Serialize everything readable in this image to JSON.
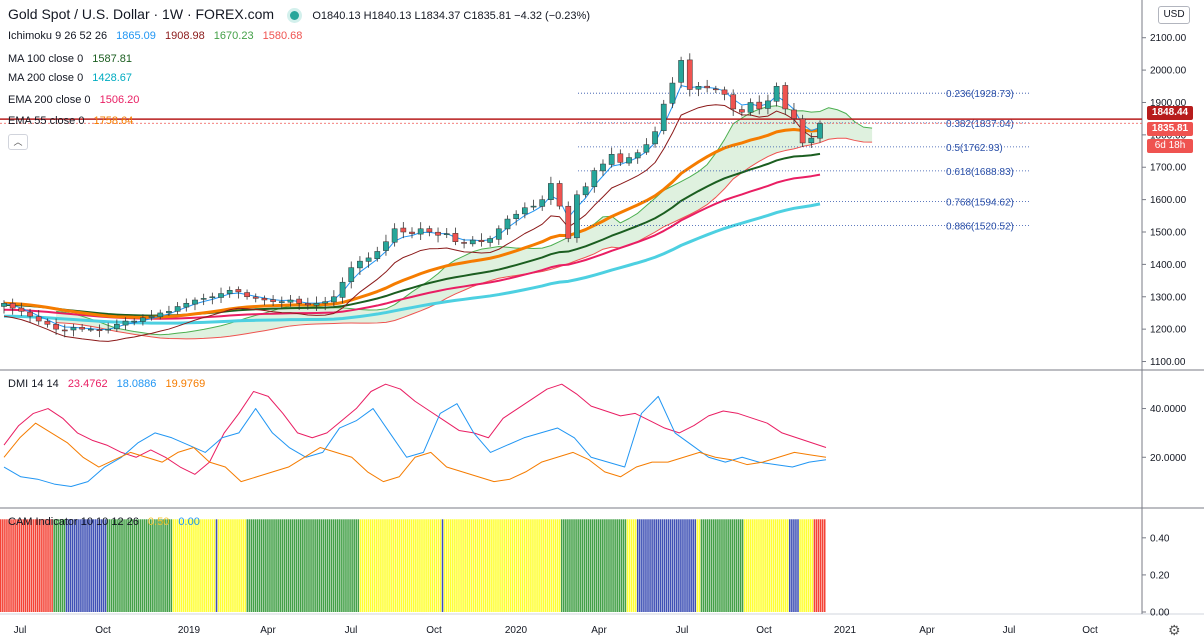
{
  "header": {
    "symbol": "Gold Spot / U.S. Dollar · 1W · FOREX.com",
    "ohlc": "O1840.13  H1840.13  L1834.37  C1835.81  −4.32 (−0.23%)",
    "currency_button": "USD"
  },
  "indicators": {
    "ichimoku": {
      "name": "Ichimoku 9 26 52 26",
      "v1": "1865.09",
      "v2": "1908.98",
      "v3": "1670.23",
      "v4": "1580.68"
    },
    "ma100": {
      "name": "MA 100 close 0",
      "value": "1587.81"
    },
    "ma200": {
      "name": "MA 200 close 0",
      "value": "1428.67"
    },
    "ema200": {
      "name": "EMA 200 close 0",
      "value": "1506.20"
    },
    "ema55": {
      "name": "EMA 55 close 0",
      "value": "1758.64"
    },
    "dmi": {
      "name": "DMI 14 14",
      "v1": "23.4762",
      "v2": "18.0886",
      "v3": "19.9769"
    },
    "cam": {
      "name": "CAM Indicator 10 10 12 26",
      "v1": "0.50",
      "v2": "0.00"
    }
  },
  "price_tags": {
    "ichimoku": "1848.44",
    "last": "1835.81",
    "countdown": "6d 18h"
  },
  "colors": {
    "up": "#26a69a",
    "down": "#ef5350",
    "ema55": "#f57c00",
    "ma100": "#1b5e20",
    "ema200": "#e91e63",
    "ma200": "#4dd0e1",
    "tenkan": "#2196f3",
    "kijun": "#8b1a1a",
    "cloud_green": "#4caf50",
    "cloud_red": "#ef5350",
    "dmi_plus": "#2196f3",
    "dmi_minus": "#f57c00",
    "adx": "#e91e63",
    "cam_red": "#f44336",
    "cam_green": "#43a047",
    "cam_blue": "#3f51b5",
    "cam_yellow": "#ffff33",
    "hline": "#b71c1c"
  },
  "chart_data": [
    {
      "type": "candlestick",
      "title": "Gold Spot / U.S. Dollar · 1W · FOREX.com",
      "ylim": [
        1080,
        2130
      ],
      "y_ticks": [
        "2100.00",
        "2000.00",
        "1900.00",
        "1800.00",
        "1700.00",
        "1600.00",
        "1500.00",
        "1400.00",
        "1300.00",
        "1200.00",
        "1100.00"
      ],
      "x_ticks": [
        "Jul",
        "Oct",
        "2019",
        "Apr",
        "Jul",
        "Oct",
        "2020",
        "Apr",
        "Jul",
        "Oct",
        "2021",
        "Apr",
        "Jul",
        "Oct"
      ],
      "close_approx": [
        1280,
        1265,
        1255,
        1240,
        1225,
        1215,
        1200,
        1195,
        1205,
        1200,
        1200,
        1195,
        1200,
        1215,
        1225,
        1225,
        1235,
        1240,
        1250,
        1255,
        1270,
        1280,
        1290,
        1295,
        1300,
        1310,
        1320,
        1315,
        1300,
        1295,
        1290,
        1285,
        1285,
        1290,
        1280,
        1275,
        1280,
        1285,
        1300,
        1345,
        1390,
        1410,
        1420,
        1440,
        1470,
        1510,
        1500,
        1495,
        1510,
        1500,
        1490,
        1495,
        1470,
        1465,
        1475,
        1470,
        1480,
        1510,
        1540,
        1555,
        1575,
        1580,
        1600,
        1650,
        1580,
        1480,
        1615,
        1640,
        1690,
        1710,
        1740,
        1715,
        1730,
        1745,
        1770,
        1810,
        1895,
        1960,
        2030,
        1940,
        1950,
        1945,
        1940,
        1925,
        1880,
        1870,
        1900,
        1880,
        1905,
        1950,
        1880,
        1850,
        1775,
        1790,
        1835
      ],
      "fib_levels": [
        {
          "label": "0.236(1928.73)",
          "value": 1928.73
        },
        {
          "label": "0.382(1837.04)",
          "value": 1837.04
        },
        {
          "label": "0.5(1762.93)",
          "value": 1762.93
        },
        {
          "label": "0.618(1688.83)",
          "value": 1688.83
        },
        {
          "label": "0.768(1594.62)",
          "value": 1594.62
        },
        {
          "label": "0.886(1520.52)",
          "value": 1520.52
        }
      ],
      "hline": 1848.44,
      "last": 1835.81
    },
    {
      "type": "line",
      "title": "DMI 14 14",
      "ylim": [
        0,
        55
      ],
      "y_ticks": [
        "40.0000",
        "20.0000"
      ],
      "series": [
        {
          "name": "ADX",
          "values": [
            25,
            33,
            38,
            40,
            36,
            30,
            27,
            25,
            22,
            20,
            23,
            20,
            16,
            13,
            18,
            30,
            38,
            47,
            45,
            38,
            30,
            28,
            30,
            35,
            40,
            47,
            50,
            48,
            43,
            39,
            35,
            31,
            30,
            28,
            36,
            40,
            44,
            48,
            50,
            46,
            41,
            39,
            37,
            38,
            35,
            32,
            30,
            33,
            37,
            39,
            38,
            36,
            34,
            30,
            28,
            26,
            24
          ]
        },
        {
          "name": "+DI",
          "values": [
            16,
            12,
            11,
            9,
            8,
            10,
            16,
            20,
            26,
            30,
            28,
            25,
            22,
            28,
            30,
            40,
            30,
            24,
            20,
            22,
            32,
            35,
            40,
            30,
            20,
            22,
            38,
            42,
            30,
            22,
            25,
            28,
            30,
            32,
            28,
            20,
            18,
            16,
            38,
            45,
            30,
            25,
            20,
            18,
            20,
            18,
            17,
            16,
            18,
            19
          ]
        },
        {
          "name": "-DI",
          "values": [
            20,
            28,
            34,
            30,
            26,
            20,
            16,
            19,
            22,
            20,
            18,
            22,
            24,
            18,
            16,
            10,
            12,
            14,
            16,
            20,
            24,
            22,
            20,
            14,
            10,
            12,
            20,
            22,
            16,
            14,
            12,
            10,
            11,
            14,
            18,
            20,
            22,
            19,
            14,
            12,
            16,
            18,
            18,
            20,
            22,
            20,
            19,
            17,
            18,
            20,
            22,
            21,
            20
          ]
        }
      ]
    },
    {
      "type": "bar",
      "title": "CAM Indicator 10 10 12 26",
      "ylim": [
        0,
        0.55
      ],
      "y_ticks": [
        "0.40",
        "0.20",
        "0.00"
      ],
      "states": "RRRRRRRRRRRRRRRRRRRRRRRRRRGGGGGGBBBBBBBBBBBBBBBBBBBBGGGGGGGGGGGGGGGGGGGGGGGGGGGGGGGGYYYYYYYYYYYYYYYYYYYYYBYYYYYYYYYYYYYYGGGGGGGGGGGGGGGGGGGGGGGGGGGGGGGGGGGGGGGGGGGGGGGGGGGGGGGYYYYYYYYYYYYYYYYYYYYYYYYYYYYYYYYYYYYYYYYBYYYYYYYYYYYYYYYYYYYYYYYYYYYYYYYYYYYYYYYYYYYYYYYYYYYYYYYYYGGGGGGGGGGGGGGGGGGGGGGGGGGGGGGGGYYYYYBBBBBBBBBBBBBBBBBBBBBBBBBBBBBYYGGGGGGGGGGGGGGGGGGGGGYYYYYYYYYYYYYYYYYYYYYYBBBBBYYYYYYYRRRRRR"
    }
  ]
}
